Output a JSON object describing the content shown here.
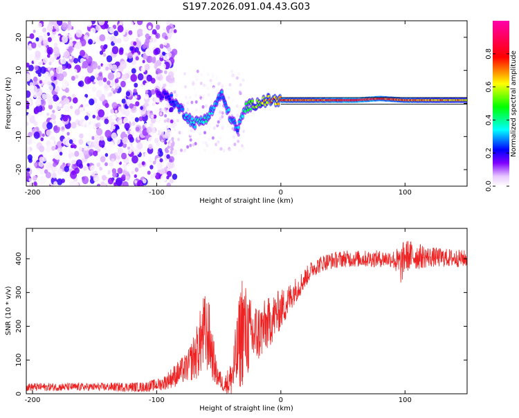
{
  "title": "S197.2026.091.04.43.G03",
  "chart_data": [
    {
      "type": "heatmap",
      "name": "spectrogram",
      "xlabel": "Height of straight line (km)",
      "ylabel": "Frequency (Hz)",
      "xlim": [
        -205,
        150
      ],
      "ylim": [
        -25,
        25
      ],
      "xticks": [
        -200,
        -100,
        0,
        100
      ],
      "xtick_labels": [
        "-200",
        "-100",
        "0",
        "100"
      ],
      "yticks": [
        20,
        10,
        0,
        -10,
        -20
      ],
      "ytick_labels": [
        "20",
        "10",
        "0",
        "-10",
        "-20"
      ],
      "colorbar": {
        "label": "Normalized spectral amplitude",
        "range": [
          0,
          1
        ],
        "ticks": [
          0.0,
          0.2,
          0.4,
          0.6,
          0.8
        ],
        "tick_labels": [
          "0.0",
          "0.2",
          "0.4",
          "0.6",
          "0.8"
        ],
        "colors": [
          "#ffffff",
          "#7f00ff",
          "#0000ff",
          "#00ffff",
          "#00ff00",
          "#ffff00",
          "#ff0000",
          "#ff00ff"
        ]
      },
      "description_points": {
        "ridge_x": [
          -100,
          -90,
          -80,
          -70,
          -62,
          -55,
          -48,
          -42,
          -35,
          -28,
          -20,
          -10,
          0,
          20,
          40,
          60,
          80,
          100,
          120,
          150
        ],
        "ridge_freq": [
          3,
          2,
          -2,
          -6,
          -5,
          -2,
          3,
          -3,
          -8,
          -1,
          0,
          1,
          1,
          1,
          1,
          1,
          1.5,
          1,
          1,
          1
        ],
        "ridge_amplitude": [
          0.15,
          0.25,
          0.3,
          0.35,
          0.4,
          0.35,
          0.3,
          0.35,
          0.3,
          0.45,
          0.6,
          0.7,
          0.8,
          0.75,
          0.85,
          0.9,
          0.85,
          0.8,
          0.75,
          0.7
        ]
      }
    },
    {
      "type": "line",
      "name": "snr",
      "color": "#ee2222",
      "xlabel": "Height of straight line (km)",
      "ylabel": "SNR (10 * v/v)",
      "xlim": [
        -205,
        150
      ],
      "ylim": [
        0,
        490
      ],
      "xticks": [
        -200,
        -100,
        0,
        100
      ],
      "xtick_labels": [
        "-200",
        "-100",
        "0",
        "100"
      ],
      "yticks": [
        0,
        100,
        200,
        300,
        400
      ],
      "ytick_labels": [
        "0",
        "100",
        "200",
        "300",
        "400"
      ],
      "envelope": {
        "x": [
          -205,
          -150,
          -110,
          -95,
          -85,
          -75,
          -68,
          -62,
          -58,
          -52,
          -46,
          -40,
          -35,
          -31,
          -28,
          -24,
          -18,
          -12,
          -5,
          0,
          5,
          10,
          15,
          20,
          25,
          35,
          50,
          70,
          90,
          97,
          100,
          120,
          150
        ],
        "mean": [
          20,
          20,
          20,
          30,
          55,
          80,
          120,
          180,
          170,
          60,
          25,
          40,
          120,
          200,
          180,
          170,
          180,
          200,
          230,
          250,
          270,
          300,
          320,
          345,
          370,
          390,
          400,
          400,
          400,
          380,
          410,
          405,
          400
        ],
        "spread": [
          12,
          12,
          15,
          20,
          35,
          45,
          80,
          120,
          110,
          40,
          20,
          60,
          120,
          180,
          140,
          110,
          90,
          80,
          70,
          60,
          50,
          40,
          35,
          30,
          25,
          25,
          25,
          25,
          25,
          60,
          50,
          30,
          25
        ]
      }
    }
  ]
}
